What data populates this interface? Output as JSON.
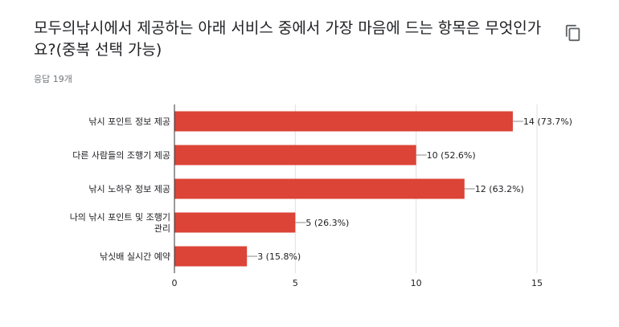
{
  "question": {
    "title": "모두의낚시에서 제공하는 아래 서비스 중에서 가장 마음에 드는 항목은 무엇인가요?(중복 선택 가능)",
    "response_count": "응답 19개"
  },
  "icons": {
    "copy": "copy-icon"
  },
  "colors": {
    "bar": "#db4437",
    "grid": "#e0e0e0",
    "axis": "#333333",
    "text": "#202124"
  },
  "chart_data": {
    "type": "bar",
    "orientation": "horizontal",
    "categories": [
      "낚시 포인트 정보 제공",
      "다른 사람들의 조행기 제공",
      "낚시 노하우 정보 제공",
      "나의 낚시 포인트 및 조행기 관리",
      "낚싯배 실시간 예약"
    ],
    "values": [
      14,
      10,
      12,
      5,
      3
    ],
    "data_labels": [
      "14 (73.7%)",
      "10 (52.6%)",
      "12 (63.2%)",
      "5 (26.3%)",
      "3 (15.8%)"
    ],
    "xlim": [
      0,
      15
    ],
    "xticks": [
      "0",
      "5",
      "10",
      "15"
    ],
    "grid": true,
    "legend": "none"
  }
}
